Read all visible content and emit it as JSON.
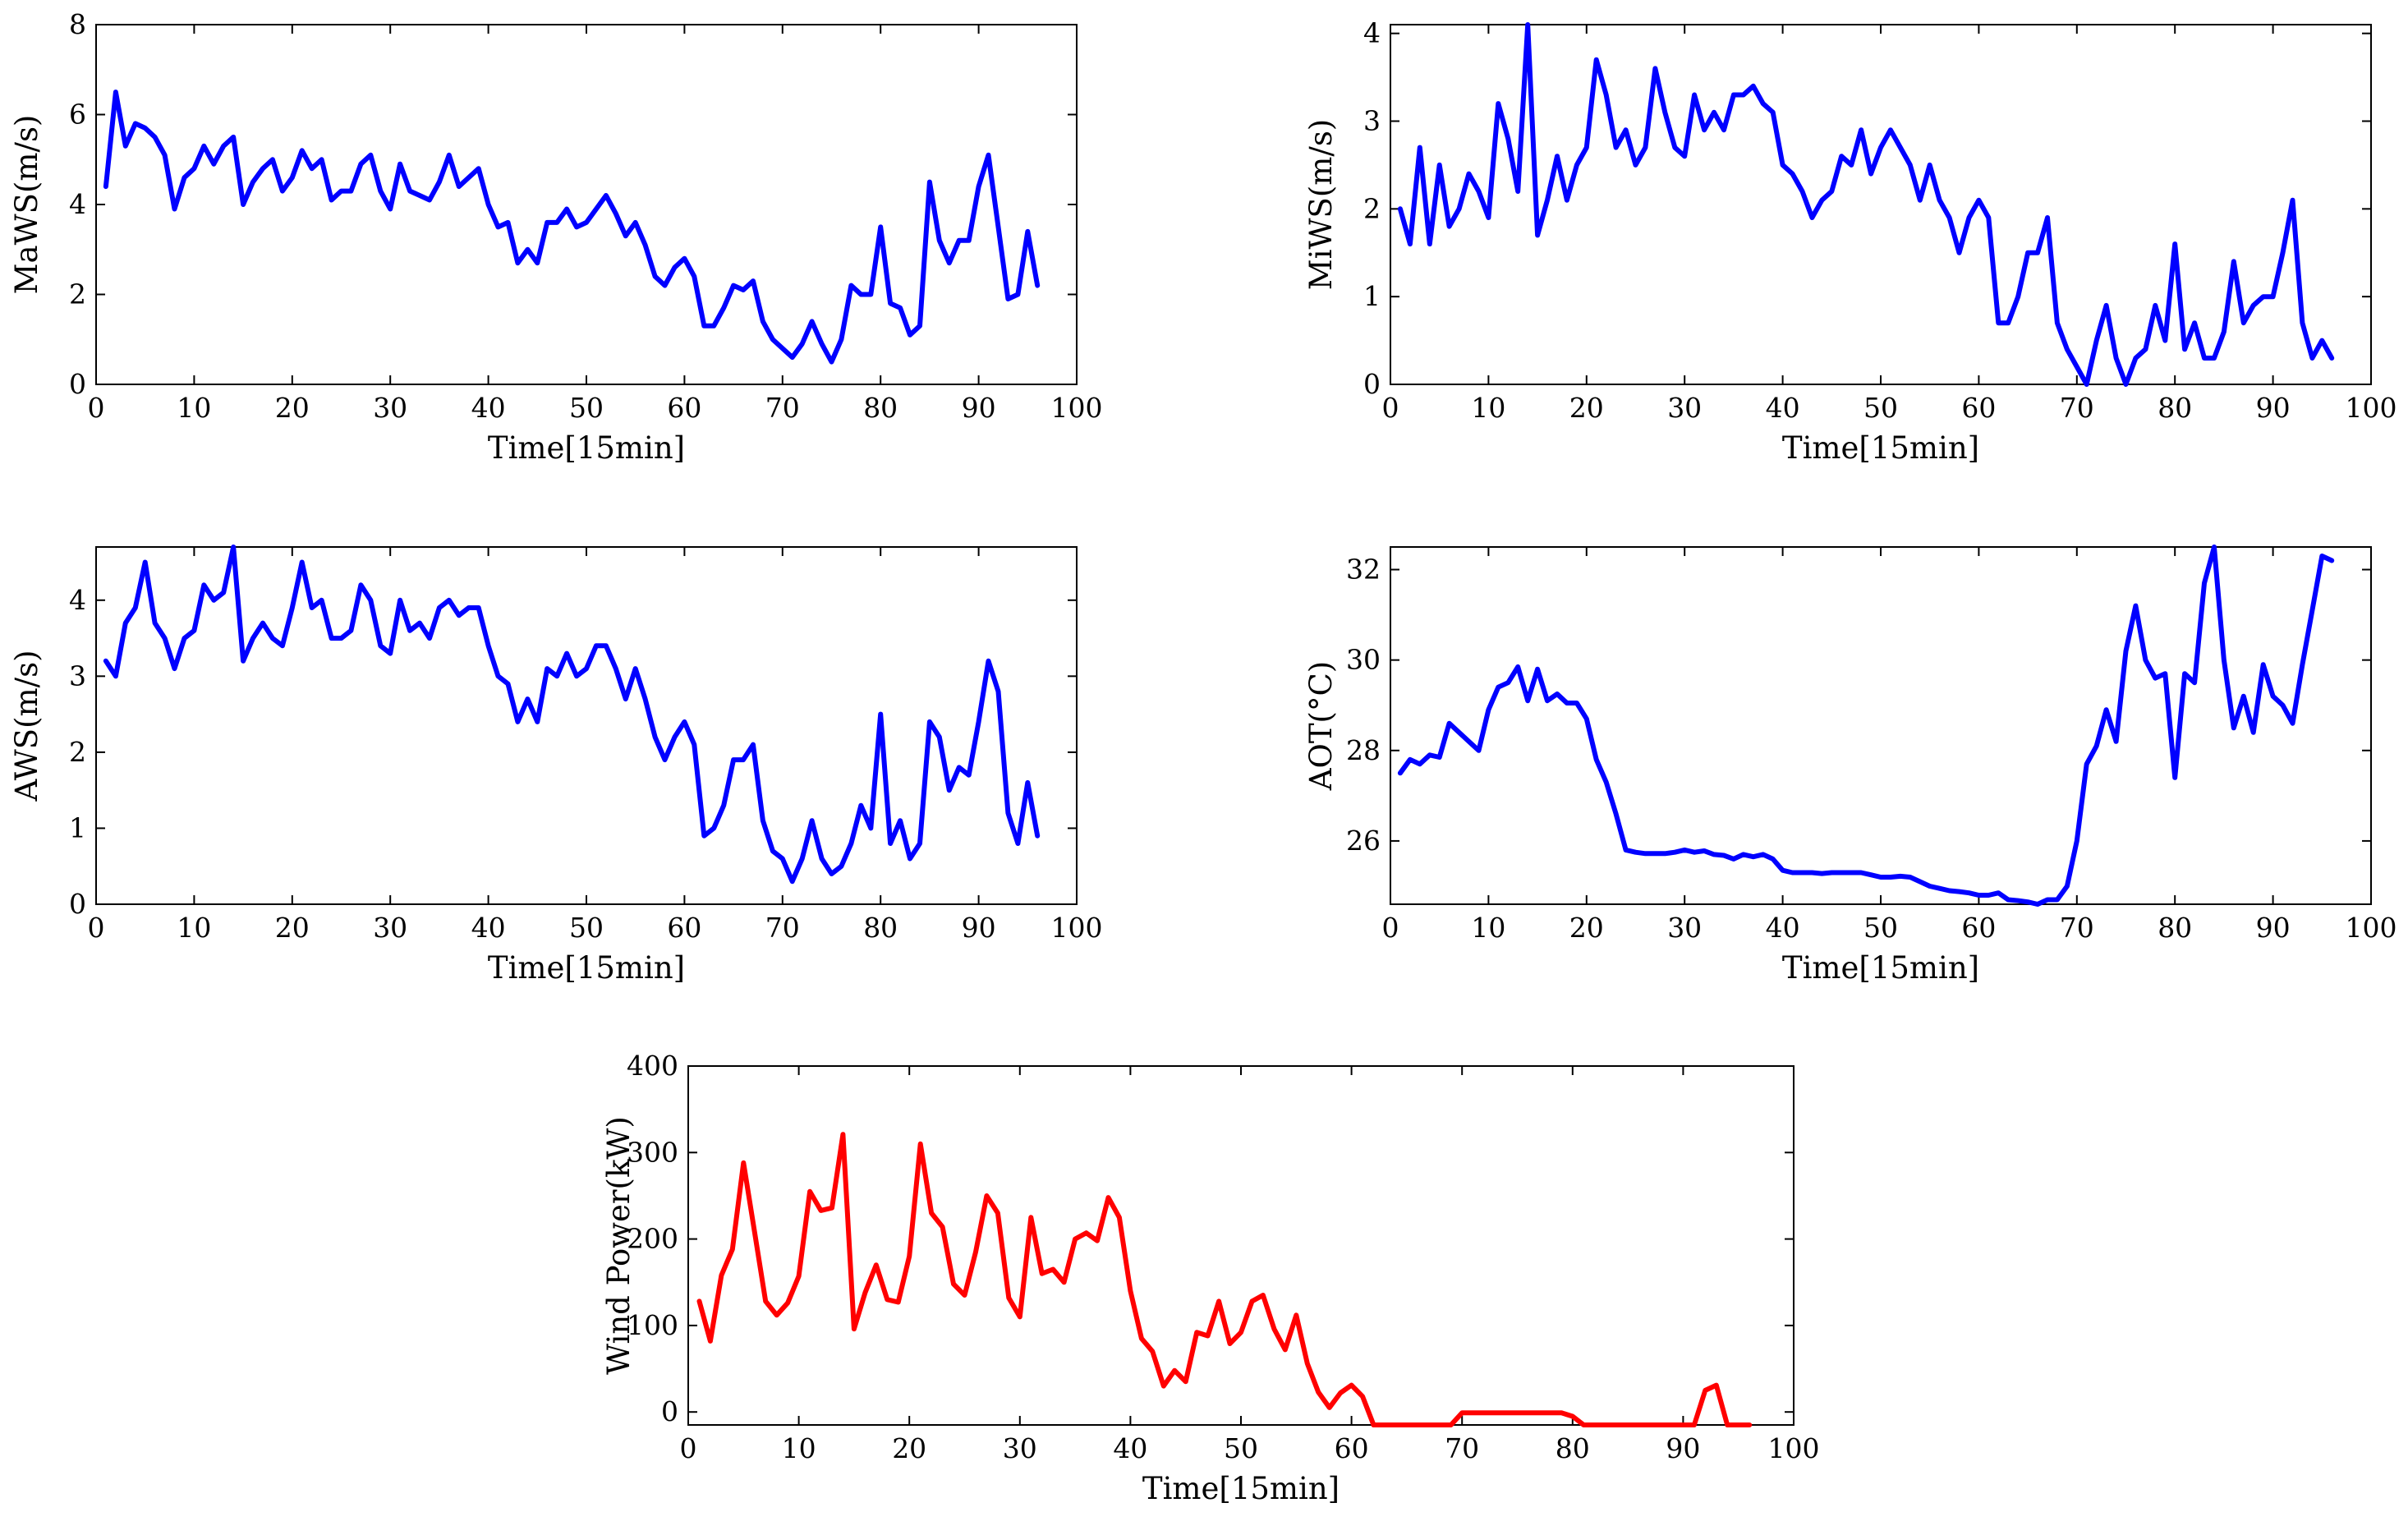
{
  "figure": {
    "description_domain": "Chart"
  },
  "chart_data": [
    {
      "type": "line",
      "id": "mawks",
      "ylabel": "MaWS(m/s)",
      "xlabel": "Time[15min]",
      "xlim": [
        0,
        100
      ],
      "ylim": [
        0,
        8
      ],
      "xticks": [
        0,
        10,
        20,
        30,
        40,
        50,
        60,
        70,
        80,
        90,
        100
      ],
      "yticks": [
        0,
        2,
        4,
        6,
        8
      ],
      "color": "#0000ff",
      "x": [
        1,
        2,
        3,
        4,
        5,
        6,
        7,
        8,
        9,
        10,
        11,
        12,
        13,
        14,
        15,
        16,
        17,
        18,
        19,
        20,
        21,
        22,
        23,
        24,
        25,
        26,
        27,
        28,
        29,
        30,
        31,
        32,
        33,
        34,
        35,
        36,
        37,
        38,
        39,
        40,
        41,
        42,
        43,
        44,
        45,
        46,
        47,
        48,
        49,
        50,
        51,
        52,
        53,
        54,
        55,
        56,
        57,
        58,
        59,
        60,
        61,
        62,
        63,
        64,
        65,
        66,
        67,
        68,
        69,
        70,
        71,
        72,
        73,
        74,
        75,
        76,
        77,
        78,
        79,
        80,
        81,
        82,
        83,
        84,
        85,
        86,
        87,
        88,
        89,
        90,
        91,
        92,
        93,
        94,
        95,
        96
      ],
      "values": [
        4.4,
        6.5,
        5.3,
        5.8,
        5.7,
        5.5,
        5.1,
        3.9,
        4.6,
        4.8,
        5.3,
        4.9,
        5.3,
        5.5,
        4.0,
        4.5,
        4.8,
        5.0,
        4.3,
        4.6,
        5.2,
        4.8,
        5.0,
        4.1,
        4.3,
        4.3,
        4.9,
        5.1,
        4.3,
        3.9,
        4.9,
        4.3,
        4.2,
        4.1,
        4.5,
        5.1,
        4.4,
        4.6,
        4.8,
        4.0,
        3.5,
        3.6,
        2.7,
        3.0,
        2.7,
        3.6,
        3.6,
        3.9,
        3.5,
        3.6,
        3.9,
        4.2,
        3.8,
        3.3,
        3.6,
        3.1,
        2.4,
        2.2,
        2.6,
        2.8,
        2.4,
        1.3,
        1.3,
        1.7,
        2.2,
        2.1,
        2.3,
        1.4,
        1.0,
        0.8,
        0.6,
        0.9,
        1.4,
        0.9,
        0.5,
        1.0,
        2.2,
        2.0,
        2.0,
        3.5,
        1.8,
        1.7,
        1.1,
        1.3,
        4.5,
        3.2,
        2.7,
        3.2,
        3.2,
        4.4,
        5.1,
        3.5,
        1.9,
        2.0,
        3.4,
        2.2
      ]
    },
    {
      "type": "line",
      "id": "miws",
      "ylabel": "MiWS(m/s)",
      "xlabel": "Time[15min]",
      "xlim": [
        0,
        100
      ],
      "ylim": [
        0,
        4.1
      ],
      "xticks": [
        0,
        10,
        20,
        30,
        40,
        50,
        60,
        70,
        80,
        90,
        100
      ],
      "yticks": [
        0,
        1,
        2,
        3,
        4
      ],
      "color": "#0000ff",
      "x": [
        1,
        2,
        3,
        4,
        5,
        6,
        7,
        8,
        9,
        10,
        11,
        12,
        13,
        14,
        15,
        16,
        17,
        18,
        19,
        20,
        21,
        22,
        23,
        24,
        25,
        26,
        27,
        28,
        29,
        30,
        31,
        32,
        33,
        34,
        35,
        36,
        37,
        38,
        39,
        40,
        41,
        42,
        43,
        44,
        45,
        46,
        47,
        48,
        49,
        50,
        51,
        52,
        53,
        54,
        55,
        56,
        57,
        58,
        59,
        60,
        61,
        62,
        63,
        64,
        65,
        66,
        67,
        68,
        69,
        70,
        71,
        72,
        73,
        74,
        75,
        76,
        77,
        78,
        79,
        80,
        81,
        82,
        83,
        84,
        85,
        86,
        87,
        88,
        89,
        90,
        91,
        92,
        93,
        94,
        95,
        96
      ],
      "values": [
        2.0,
        1.6,
        2.7,
        1.6,
        2.5,
        1.8,
        2.0,
        2.4,
        2.2,
        1.9,
        3.2,
        2.8,
        2.2,
        4.1,
        1.7,
        2.1,
        2.6,
        2.1,
        2.5,
        2.7,
        3.7,
        3.3,
        2.7,
        2.9,
        2.5,
        2.7,
        3.6,
        3.1,
        2.7,
        2.6,
        3.3,
        2.9,
        3.1,
        2.9,
        3.3,
        3.3,
        3.4,
        3.2,
        3.1,
        2.5,
        2.4,
        2.2,
        1.9,
        2.1,
        2.2,
        2.6,
        2.5,
        2.9,
        2.4,
        2.7,
        2.9,
        2.7,
        2.5,
        2.1,
        2.5,
        2.1,
        1.9,
        1.5,
        1.9,
        2.1,
        1.9,
        0.7,
        0.7,
        1.0,
        1.5,
        1.5,
        1.9,
        0.7,
        0.4,
        0.2,
        0.0,
        0.5,
        0.9,
        0.3,
        0.0,
        0.3,
        0.4,
        0.9,
        0.5,
        1.6,
        0.4,
        0.7,
        0.3,
        0.3,
        0.6,
        1.4,
        0.7,
        0.9,
        1.0,
        1.0,
        1.5,
        2.1,
        0.7,
        0.3,
        0.5,
        0.3
      ]
    },
    {
      "type": "line",
      "id": "aws",
      "ylabel": "AWS(m/s)",
      "xlabel": "Time[15min]",
      "xlim": [
        0,
        100
      ],
      "ylim": [
        0,
        4.7
      ],
      "xticks": [
        0,
        10,
        20,
        30,
        40,
        50,
        60,
        70,
        80,
        90,
        100
      ],
      "yticks": [
        0,
        1,
        2,
        3,
        4
      ],
      "color": "#0000ff",
      "x": [
        1,
        2,
        3,
        4,
        5,
        6,
        7,
        8,
        9,
        10,
        11,
        12,
        13,
        14,
        15,
        16,
        17,
        18,
        19,
        20,
        21,
        22,
        23,
        24,
        25,
        26,
        27,
        28,
        29,
        30,
        31,
        32,
        33,
        34,
        35,
        36,
        37,
        38,
        39,
        40,
        41,
        42,
        43,
        44,
        45,
        46,
        47,
        48,
        49,
        50,
        51,
        52,
        53,
        54,
        55,
        56,
        57,
        58,
        59,
        60,
        61,
        62,
        63,
        64,
        65,
        66,
        67,
        68,
        69,
        70,
        71,
        72,
        73,
        74,
        75,
        76,
        77,
        78,
        79,
        80,
        81,
        82,
        83,
        84,
        85,
        86,
        87,
        88,
        89,
        90,
        91,
        92,
        93,
        94,
        95,
        96
      ],
      "values": [
        3.2,
        3.0,
        3.7,
        3.9,
        4.5,
        3.7,
        3.5,
        3.1,
        3.5,
        3.6,
        4.2,
        4.0,
        4.1,
        4.7,
        3.2,
        3.5,
        3.7,
        3.5,
        3.4,
        3.9,
        4.5,
        3.9,
        4.0,
        3.5,
        3.5,
        3.6,
        4.2,
        4.0,
        3.4,
        3.3,
        4.0,
        3.6,
        3.7,
        3.5,
        3.9,
        4.0,
        3.8,
        3.9,
        3.9,
        3.4,
        3.0,
        2.9,
        2.4,
        2.7,
        2.4,
        3.1,
        3.0,
        3.3,
        3.0,
        3.1,
        3.4,
        3.4,
        3.1,
        2.7,
        3.1,
        2.7,
        2.2,
        1.9,
        2.2,
        2.4,
        2.1,
        0.9,
        1.0,
        1.3,
        1.9,
        1.9,
        2.1,
        1.1,
        0.7,
        0.6,
        0.3,
        0.6,
        1.1,
        0.6,
        0.4,
        0.5,
        0.8,
        1.3,
        1.0,
        2.5,
        0.8,
        1.1,
        0.6,
        0.8,
        2.4,
        2.2,
        1.5,
        1.8,
        1.7,
        2.4,
        3.2,
        2.8,
        1.2,
        0.8,
        1.6,
        0.9
      ]
    },
    {
      "type": "line",
      "id": "aot",
      "ylabel": "AOT(°C)",
      "xlabel": "Time[15min]",
      "xlim": [
        0,
        100
      ],
      "ylim": [
        24.6,
        32.5
      ],
      "xticks": [
        0,
        10,
        20,
        30,
        40,
        50,
        60,
        70,
        80,
        90,
        100
      ],
      "yticks": [
        26,
        28,
        30,
        32
      ],
      "color": "#0000ff",
      "x": [
        1,
        2,
        3,
        4,
        5,
        6,
        7,
        8,
        9,
        10,
        11,
        12,
        13,
        14,
        15,
        16,
        17,
        18,
        19,
        20,
        21,
        22,
        23,
        24,
        25,
        26,
        27,
        28,
        29,
        30,
        31,
        32,
        33,
        34,
        35,
        36,
        37,
        38,
        39,
        40,
        41,
        42,
        43,
        44,
        45,
        46,
        47,
        48,
        49,
        50,
        51,
        52,
        53,
        54,
        55,
        56,
        57,
        58,
        59,
        60,
        61,
        62,
        63,
        64,
        65,
        66,
        67,
        68,
        69,
        70,
        71,
        72,
        73,
        74,
        75,
        76,
        77,
        78,
        79,
        80,
        81,
        82,
        83,
        84,
        85,
        86,
        87,
        88,
        89,
        90,
        91,
        92,
        93,
        94,
        95,
        96
      ],
      "values": [
        27.5,
        27.8,
        27.7,
        27.9,
        27.85,
        28.6,
        28.4,
        28.2,
        28.0,
        28.9,
        29.4,
        29.5,
        29.85,
        29.1,
        29.8,
        29.1,
        29.25,
        29.05,
        29.05,
        28.7,
        27.8,
        27.3,
        26.6,
        25.8,
        25.75,
        25.72,
        25.72,
        25.72,
        25.75,
        25.8,
        25.75,
        25.78,
        25.7,
        25.68,
        25.6,
        25.7,
        25.65,
        25.7,
        25.6,
        25.35,
        25.3,
        25.3,
        25.3,
        25.28,
        25.3,
        25.3,
        25.3,
        25.3,
        25.25,
        25.2,
        25.2,
        25.22,
        25.2,
        25.1,
        25.0,
        24.95,
        24.9,
        24.88,
        24.85,
        24.8,
        24.8,
        24.85,
        24.7,
        24.68,
        24.65,
        24.6,
        24.7,
        24.7,
        25.0,
        26.0,
        27.7,
        28.1,
        28.9,
        28.2,
        30.2,
        31.2,
        30.0,
        29.6,
        29.7,
        27.4,
        29.7,
        29.5,
        31.7,
        32.5,
        30.0,
        28.5,
        29.2,
        28.4,
        29.9,
        29.2,
        29.0,
        28.6,
        29.9,
        31.1,
        32.3,
        32.2
      ]
    },
    {
      "type": "line",
      "id": "wind-power",
      "ylabel": "Wind Power(kW)",
      "xlabel": "Time[15min]",
      "xlim": [
        0,
        100
      ],
      "ylim": [
        -15,
        400
      ],
      "xticks": [
        0,
        10,
        20,
        30,
        40,
        50,
        60,
        70,
        80,
        90,
        100
      ],
      "yticks": [
        0,
        100,
        200,
        300,
        400
      ],
      "color": "#ff0000",
      "x": [
        1,
        2,
        3,
        4,
        5,
        6,
        7,
        8,
        9,
        10,
        11,
        12,
        13,
        14,
        15,
        16,
        17,
        18,
        19,
        20,
        21,
        22,
        23,
        24,
        25,
        26,
        27,
        28,
        29,
        30,
        31,
        32,
        33,
        34,
        35,
        36,
        37,
        38,
        39,
        40,
        41,
        42,
        43,
        44,
        45,
        46,
        47,
        48,
        49,
        50,
        51,
        52,
        53,
        54,
        55,
        56,
        57,
        58,
        59,
        60,
        61,
        62,
        63,
        64,
        65,
        66,
        67,
        68,
        69,
        70,
        71,
        72,
        73,
        74,
        75,
        76,
        77,
        78,
        79,
        80,
        81,
        82,
        83,
        84,
        85,
        86,
        87,
        88,
        89,
        90,
        91,
        92,
        93,
        94,
        95,
        96
      ],
      "values": [
        128,
        82,
        158,
        188,
        288,
        208,
        128,
        112,
        126,
        157,
        255,
        233,
        236,
        321,
        96,
        138,
        170,
        130,
        127,
        180,
        310,
        230,
        214,
        148,
        135,
        185,
        250,
        230,
        132,
        110,
        225,
        160,
        165,
        150,
        200,
        207,
        198,
        248,
        225,
        140,
        85,
        70,
        30,
        48,
        35,
        92,
        88,
        128,
        79,
        92,
        128,
        135,
        96,
        72,
        112,
        56,
        23,
        5,
        22,
        31,
        18,
        -15,
        -15,
        -15,
        -15,
        -15,
        -15,
        -15,
        -15,
        -1,
        -1,
        -1,
        -1,
        -1,
        -1,
        -1,
        -1,
        -1,
        -1,
        -5,
        -15,
        -15,
        -15,
        -15,
        -15,
        -15,
        -15,
        -15,
        -15,
        -15,
        -15,
        25,
        31,
        -15,
        -15,
        -15
      ]
    }
  ]
}
